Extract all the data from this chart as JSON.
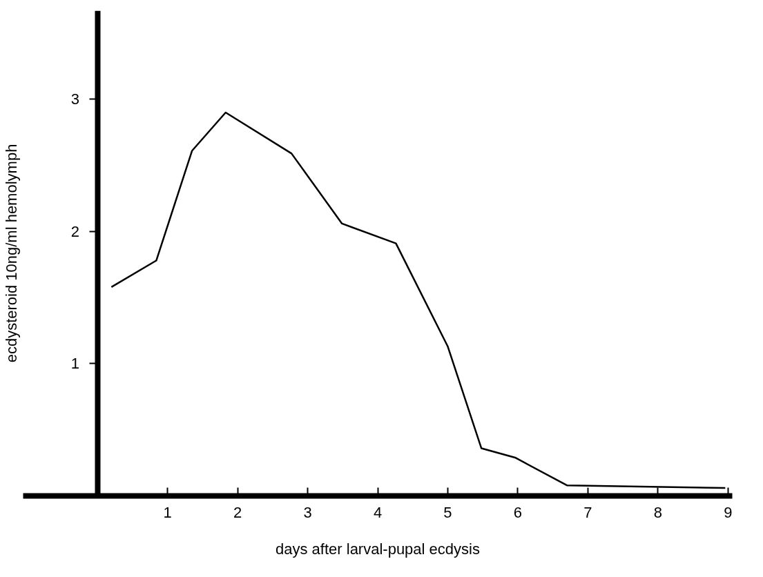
{
  "chart_data": {
    "type": "line",
    "xlabel": "days after larval-pupal ecdysis",
    "ylabel": "ecdysteroid 10ng/ml hemolymph",
    "x": [
      0.2,
      0.84,
      1.35,
      1.83,
      2.77,
      3.49,
      4.26,
      5.0,
      5.48,
      5.96,
      6.7,
      8.96
    ],
    "series": [
      {
        "color": "#000000",
        "values": [
          1.58,
          1.78,
          2.61,
          2.9,
          2.59,
          2.06,
          1.91,
          1.13,
          0.36,
          0.29,
          0.08,
          0.06
        ]
      }
    ],
    "xlim": [
      -1.06,
      9.06
    ],
    "ylim": [
      0,
      3.67
    ],
    "xticks": [
      1,
      2,
      3,
      4,
      5,
      6,
      7,
      8,
      9
    ],
    "yticks": [
      1,
      2,
      3
    ],
    "grid": false,
    "marker": "none",
    "line_style": "solid"
  }
}
